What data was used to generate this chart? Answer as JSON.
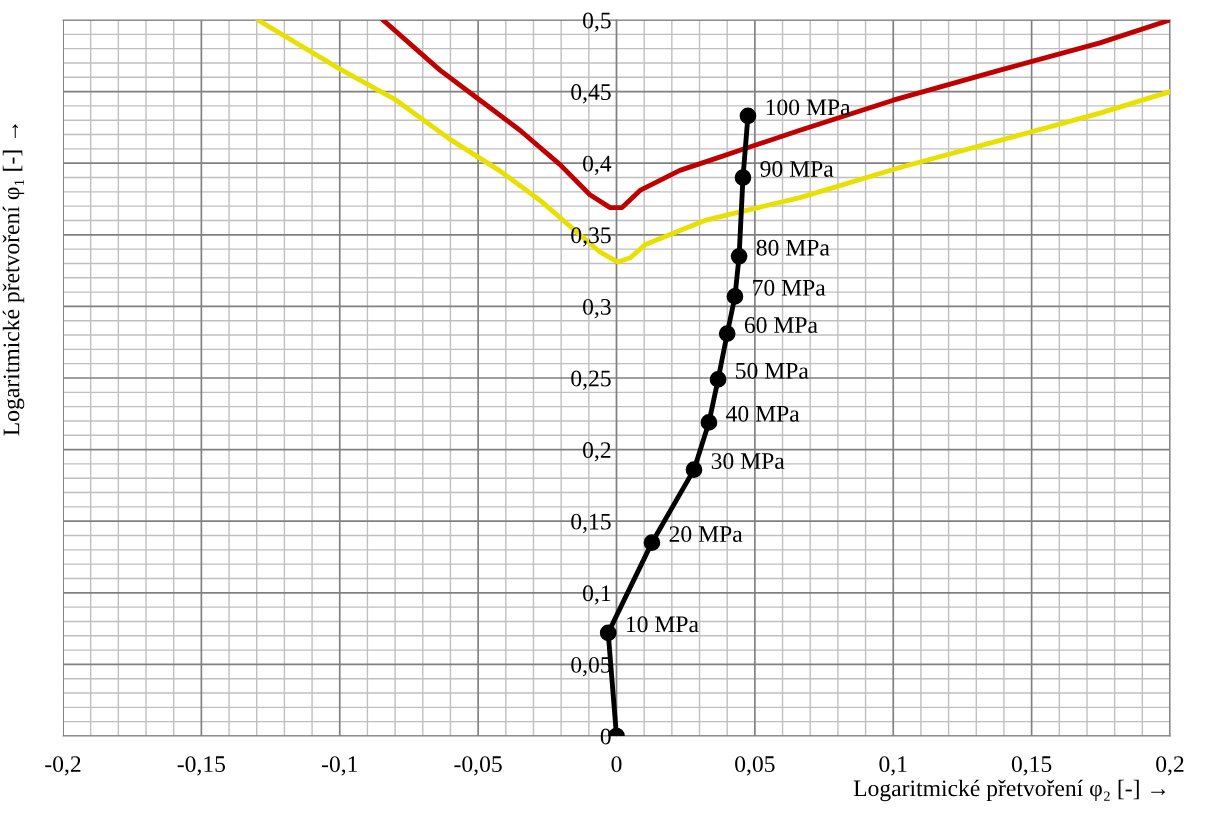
{
  "chart_data": {
    "type": "line",
    "xlabel": "Logaritmické přetvoření φ₂ [-] →",
    "ylabel": "Logaritmické přetvoření φ₁ [-] →",
    "xlim": [
      -0.2,
      0.2
    ],
    "xticks": [
      {
        "value": -0.2,
        "label": "-0,2"
      },
      {
        "value": -0.15,
        "label": "-0,15"
      },
      {
        "value": -0.1,
        "label": "-0,1"
      },
      {
        "value": -0.05,
        "label": "-0,05"
      },
      0,
      {
        "value": 0.05,
        "label": "0,05"
      },
      {
        "value": 0.1,
        "label": "0,1"
      },
      {
        "value": 0.15,
        "label": "0,15"
      },
      {
        "value": 0.2,
        "label": "0,2"
      }
    ],
    "ylim": [
      0,
      0.5
    ],
    "yticks": [
      0,
      {
        "value": 0.05,
        "label": "0,05"
      },
      {
        "value": 0.1,
        "label": "0,1"
      },
      {
        "value": 0.15,
        "label": "0,15"
      },
      {
        "value": 0.2,
        "label": "0,2"
      },
      {
        "value": 0.25,
        "label": "0,25"
      },
      {
        "value": 0.3,
        "label": "0,3"
      },
      {
        "value": 0.35,
        "label": "0,35"
      },
      {
        "value": 0.4,
        "label": "0,4"
      },
      {
        "value": 0.45,
        "label": "0,45"
      },
      {
        "value": 0.5,
        "label": "0,5"
      }
    ],
    "grid": true,
    "series": [
      {
        "color": "#c00000",
        "marker": "none",
        "x": [
          -0.0844,
          -0.0638,
          -0.0493,
          -0.0349,
          -0.0204,
          -0.0096,
          -0.0023,
          0.002,
          0.0085,
          0.0229,
          0.0338,
          0.0446,
          0.0663,
          0.1,
          0.1386,
          0.1747,
          0.2
        ],
        "values": [
          0.5,
          0.465,
          0.444,
          0.423,
          0.399,
          0.378,
          0.369,
          0.369,
          0.381,
          0.395,
          0.402,
          0.409,
          0.423,
          0.444,
          0.465,
          0.484,
          0.5
        ]
      },
      {
        "color": "#e8e000",
        "marker": "none",
        "x": [
          -0.1296,
          -0.1002,
          -0.0796,
          -0.0604,
          -0.0424,
          -0.0276,
          -0.015,
          -0.006,
          0.0005,
          0.005,
          0.0103,
          0.0229,
          0.032,
          0.0446,
          0.0663,
          0.1024,
          0.1386,
          0.1747,
          0.2
        ],
        "values": [
          0.5,
          0.466,
          0.444,
          0.417,
          0.395,
          0.374,
          0.353,
          0.338,
          0.331,
          0.334,
          0.343,
          0.353,
          0.36,
          0.366,
          0.376,
          0.397,
          0.416,
          0.435,
          0.45
        ]
      },
      {
        "color": "#000000",
        "marker": "circle",
        "x": [
          0,
          -0.003,
          0.0128,
          0.028,
          0.0334,
          0.0367,
          0.04,
          0.0428,
          0.0443,
          0.0457,
          0.0475
        ],
        "values": [
          0,
          0.072,
          0.135,
          0.186,
          0.219,
          0.249,
          0.281,
          0.307,
          0.335,
          0.39,
          0.433
        ]
      }
    ],
    "annotations": [
      {
        "text": "10 MPa",
        "x": -0.003,
        "y": 0.072
      },
      {
        "text": "20 MPa",
        "x": 0.0128,
        "y": 0.135
      },
      {
        "text": "30 MPa",
        "x": 0.028,
        "y": 0.186
      },
      {
        "text": "40 MPa",
        "x": 0.0334,
        "y": 0.219
      },
      {
        "text": "50 MPa",
        "x": 0.0367,
        "y": 0.249
      },
      {
        "text": "60 MPa",
        "x": 0.04,
        "y": 0.281
      },
      {
        "text": "70 MPa",
        "x": 0.0428,
        "y": 0.307
      },
      {
        "text": "80 MPa",
        "x": 0.0443,
        "y": 0.335
      },
      {
        "text": "90 MPa",
        "x": 0.0457,
        "y": 0.39
      },
      {
        "text": "100 MPa",
        "x": 0.0475,
        "y": 0.433
      }
    ]
  }
}
